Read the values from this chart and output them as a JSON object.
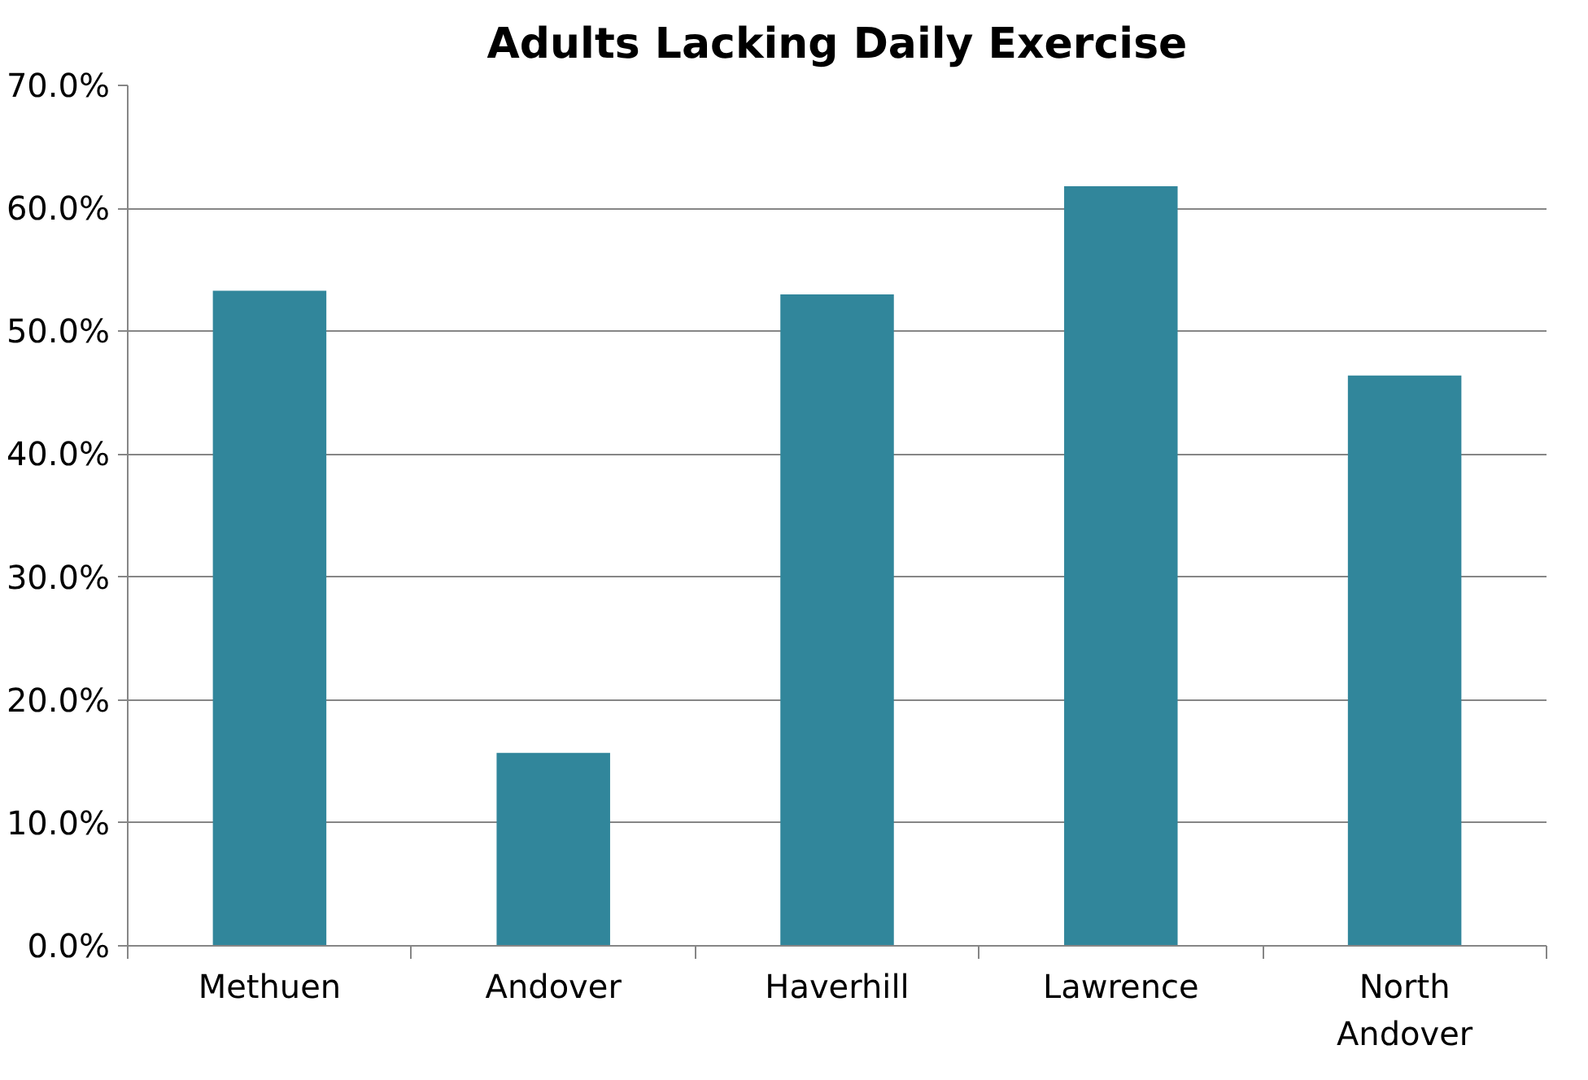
{
  "chart_data": {
    "type": "bar",
    "title": "Adults Lacking Daily Exercise",
    "categories": [
      "Methuen",
      "Andover",
      "Haverhill",
      "Lawrence",
      "North Andover"
    ],
    "values": [
      53.3,
      15.7,
      53.0,
      61.8,
      46.4
    ],
    "color": "#31869b",
    "ylim": [
      0,
      70
    ],
    "yticks": [
      {
        "value": 0,
        "label": "0.0%"
      },
      {
        "value": 10,
        "label": "10.0%"
      },
      {
        "value": 20,
        "label": "20.0%"
      },
      {
        "value": 30,
        "label": "30.0%"
      },
      {
        "value": 40,
        "label": "40.0%"
      },
      {
        "value": 50,
        "label": "50.0%"
      },
      {
        "value": 60,
        "label": "60.0%"
      },
      {
        "value": 70,
        "label": "70.0%"
      }
    ],
    "grid": "y"
  }
}
